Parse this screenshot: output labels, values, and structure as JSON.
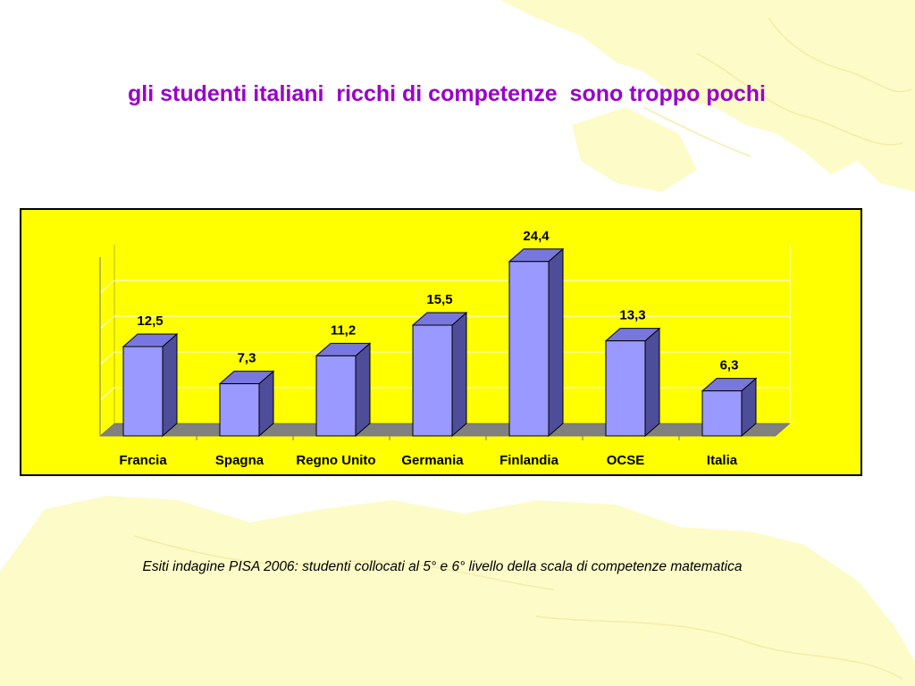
{
  "slide": {
    "title": "gli studenti italiani  ricchi di competenze  sono troppo pochi",
    "caption": "Esiti indagine PISA 2006: studenti collocati al 5° e 6° livello della scala di competenze matematica"
  },
  "colors": {
    "title": "#9900cc",
    "chart_background": "#ffff00",
    "bar_front": "#9999ff",
    "bar_side": "#4d4d99",
    "bar_top": "#7777dd",
    "floor": "#808080",
    "map_decoration": "#fdfbc8"
  },
  "chart_data": {
    "type": "bar",
    "style": "3d",
    "categories": [
      "Francia",
      "Spagna",
      "Regno Unito",
      "Germania",
      "Finlandia",
      "OCSE",
      "Italia"
    ],
    "values": [
      12.5,
      7.3,
      11.2,
      15.5,
      24.4,
      13.3,
      6.3
    ],
    "data_labels": [
      "12,5",
      "7,3",
      "11,2",
      "15,5",
      "24,4",
      "13,3",
      "6,3"
    ],
    "title": "",
    "xlabel": "",
    "ylabel": "",
    "ylim": [
      0,
      25
    ],
    "grid": true,
    "legend": "none"
  }
}
